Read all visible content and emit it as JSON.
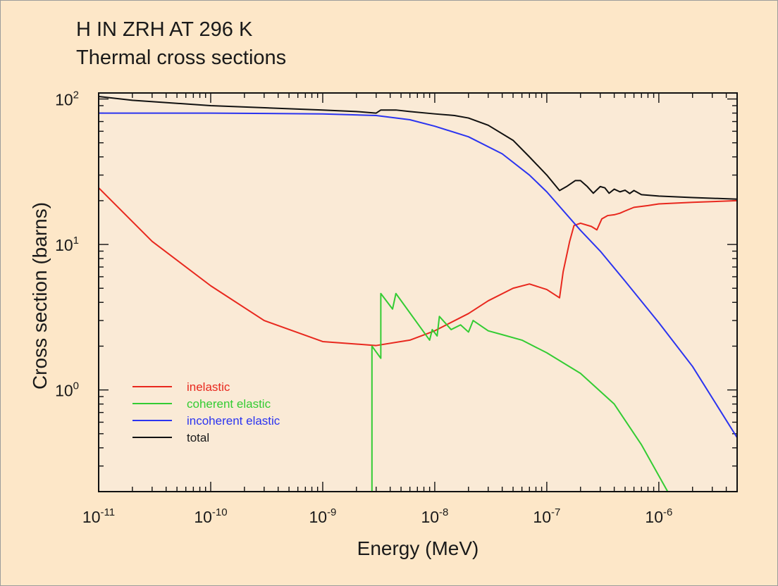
{
  "chart_data": {
    "type": "line",
    "title": "H IN ZRH AT 296 K",
    "subtitle": "Thermal cross sections",
    "xlabel": "Energy (MeV)",
    "ylabel": "Cross section (barns)",
    "xscale": "log",
    "yscale": "log",
    "xlim": [
      1e-11,
      5e-06
    ],
    "ylim": [
      0.2,
      110
    ],
    "x_ticks": [
      {
        "base": "10",
        "exp": "-11"
      },
      {
        "base": "10",
        "exp": "-10"
      },
      {
        "base": "10",
        "exp": "-9"
      },
      {
        "base": "10",
        "exp": "-8"
      },
      {
        "base": "10",
        "exp": "-7"
      },
      {
        "base": "10",
        "exp": "-6"
      }
    ],
    "y_ticks": [
      {
        "base": "10",
        "exp": "0"
      },
      {
        "base": "10",
        "exp": "1"
      },
      {
        "base": "10",
        "exp": "2"
      }
    ],
    "legend_position": "bottom-left",
    "colors": {
      "background": "#fde7c8",
      "plot_area": "#faead6",
      "axis": "#111111",
      "text": "#1a1a1a"
    },
    "series": [
      {
        "name": "inelastic",
        "color": "#e8281e",
        "points": [
          [
            1e-11,
            24.5
          ],
          [
            3e-11,
            10.5
          ],
          [
            1e-10,
            5.2
          ],
          [
            3e-10,
            3.0
          ],
          [
            1e-09,
            2.15
          ],
          [
            3e-09,
            2.02
          ],
          [
            6e-09,
            2.2
          ],
          [
            1e-08,
            2.55
          ],
          [
            2e-08,
            3.35
          ],
          [
            3e-08,
            4.1
          ],
          [
            5e-08,
            5.0
          ],
          [
            7e-08,
            5.35
          ],
          [
            1e-07,
            4.9
          ],
          [
            1.3e-07,
            4.3
          ],
          [
            1.4e-07,
            6.5
          ],
          [
            1.6e-07,
            10.5
          ],
          [
            1.75e-07,
            13.5
          ],
          [
            2e-07,
            14.0
          ],
          [
            2.5e-07,
            13.3
          ],
          [
            2.8e-07,
            12.6
          ],
          [
            3.1e-07,
            15.0
          ],
          [
            3.5e-07,
            15.8
          ],
          [
            4e-07,
            16.0
          ],
          [
            4.5e-07,
            16.4
          ],
          [
            5e-07,
            17.0
          ],
          [
            6e-07,
            18.0
          ],
          [
            8e-07,
            18.5
          ],
          [
            1e-06,
            19.0
          ],
          [
            2e-06,
            19.5
          ],
          [
            5e-06,
            20.0
          ]
        ]
      },
      {
        "name": "coherent elastic",
        "color": "#33cc33",
        "points": [
          [
            2.75e-09,
            0.2
          ],
          [
            2.75e-09,
            2.0
          ],
          [
            3.3e-09,
            1.65
          ],
          [
            3.3e-09,
            4.6
          ],
          [
            4.2e-09,
            3.6
          ],
          [
            4.5e-09,
            4.6
          ],
          [
            9e-09,
            2.2
          ],
          [
            9.5e-09,
            2.6
          ],
          [
            1.05e-08,
            2.35
          ],
          [
            1.1e-08,
            3.2
          ],
          [
            1.4e-08,
            2.6
          ],
          [
            1.7e-08,
            2.8
          ],
          [
            2e-08,
            2.5
          ],
          [
            2.2e-08,
            3.0
          ],
          [
            3e-08,
            2.55
          ],
          [
            4e-08,
            2.4
          ],
          [
            6e-08,
            2.2
          ],
          [
            1e-07,
            1.8
          ],
          [
            2e-07,
            1.3
          ],
          [
            4e-07,
            0.8
          ],
          [
            7e-07,
            0.42
          ],
          [
            1.2e-06,
            0.2
          ]
        ]
      },
      {
        "name": "incoherent elastic",
        "color": "#2b34f0",
        "points": [
          [
            1e-11,
            80
          ],
          [
            1e-10,
            80
          ],
          [
            1e-09,
            79
          ],
          [
            3e-09,
            77
          ],
          [
            6e-09,
            72
          ],
          [
            1e-08,
            65
          ],
          [
            2e-08,
            55
          ],
          [
            4e-08,
            42
          ],
          [
            7e-08,
            30
          ],
          [
            1e-07,
            23
          ],
          [
            2e-07,
            12.5
          ],
          [
            3e-07,
            9.0
          ],
          [
            5e-07,
            5.6
          ],
          [
            1e-06,
            2.9
          ],
          [
            2e-06,
            1.45
          ],
          [
            5e-06,
            0.47
          ]
        ]
      },
      {
        "name": "total",
        "color": "#111111",
        "points": [
          [
            1e-11,
            104
          ],
          [
            2e-11,
            98
          ],
          [
            1e-10,
            90
          ],
          [
            1e-09,
            84
          ],
          [
            2e-09,
            82
          ],
          [
            3e-09,
            80
          ],
          [
            3.3e-09,
            84
          ],
          [
            4.5e-09,
            84
          ],
          [
            6e-09,
            82
          ],
          [
            1e-08,
            79
          ],
          [
            1.5e-08,
            77
          ],
          [
            2e-08,
            74
          ],
          [
            3e-08,
            66
          ],
          [
            5e-08,
            52
          ],
          [
            7e-08,
            40
          ],
          [
            1e-07,
            30
          ],
          [
            1.3e-07,
            23.5
          ],
          [
            1.5e-07,
            25
          ],
          [
            1.8e-07,
            27.5
          ],
          [
            2e-07,
            27.5
          ],
          [
            2.3e-07,
            25
          ],
          [
            2.6e-07,
            22.5
          ],
          [
            3e-07,
            25.0
          ],
          [
            3.3e-07,
            24.5
          ],
          [
            3.6e-07,
            22.5
          ],
          [
            4e-07,
            24.0
          ],
          [
            4.5e-07,
            23.0
          ],
          [
            5e-07,
            23.6
          ],
          [
            5.5e-07,
            22.4
          ],
          [
            6e-07,
            23.5
          ],
          [
            7e-07,
            22.0
          ],
          [
            1e-06,
            21.5
          ],
          [
            2e-06,
            21.0
          ],
          [
            5e-06,
            20.5
          ]
        ]
      }
    ]
  }
}
